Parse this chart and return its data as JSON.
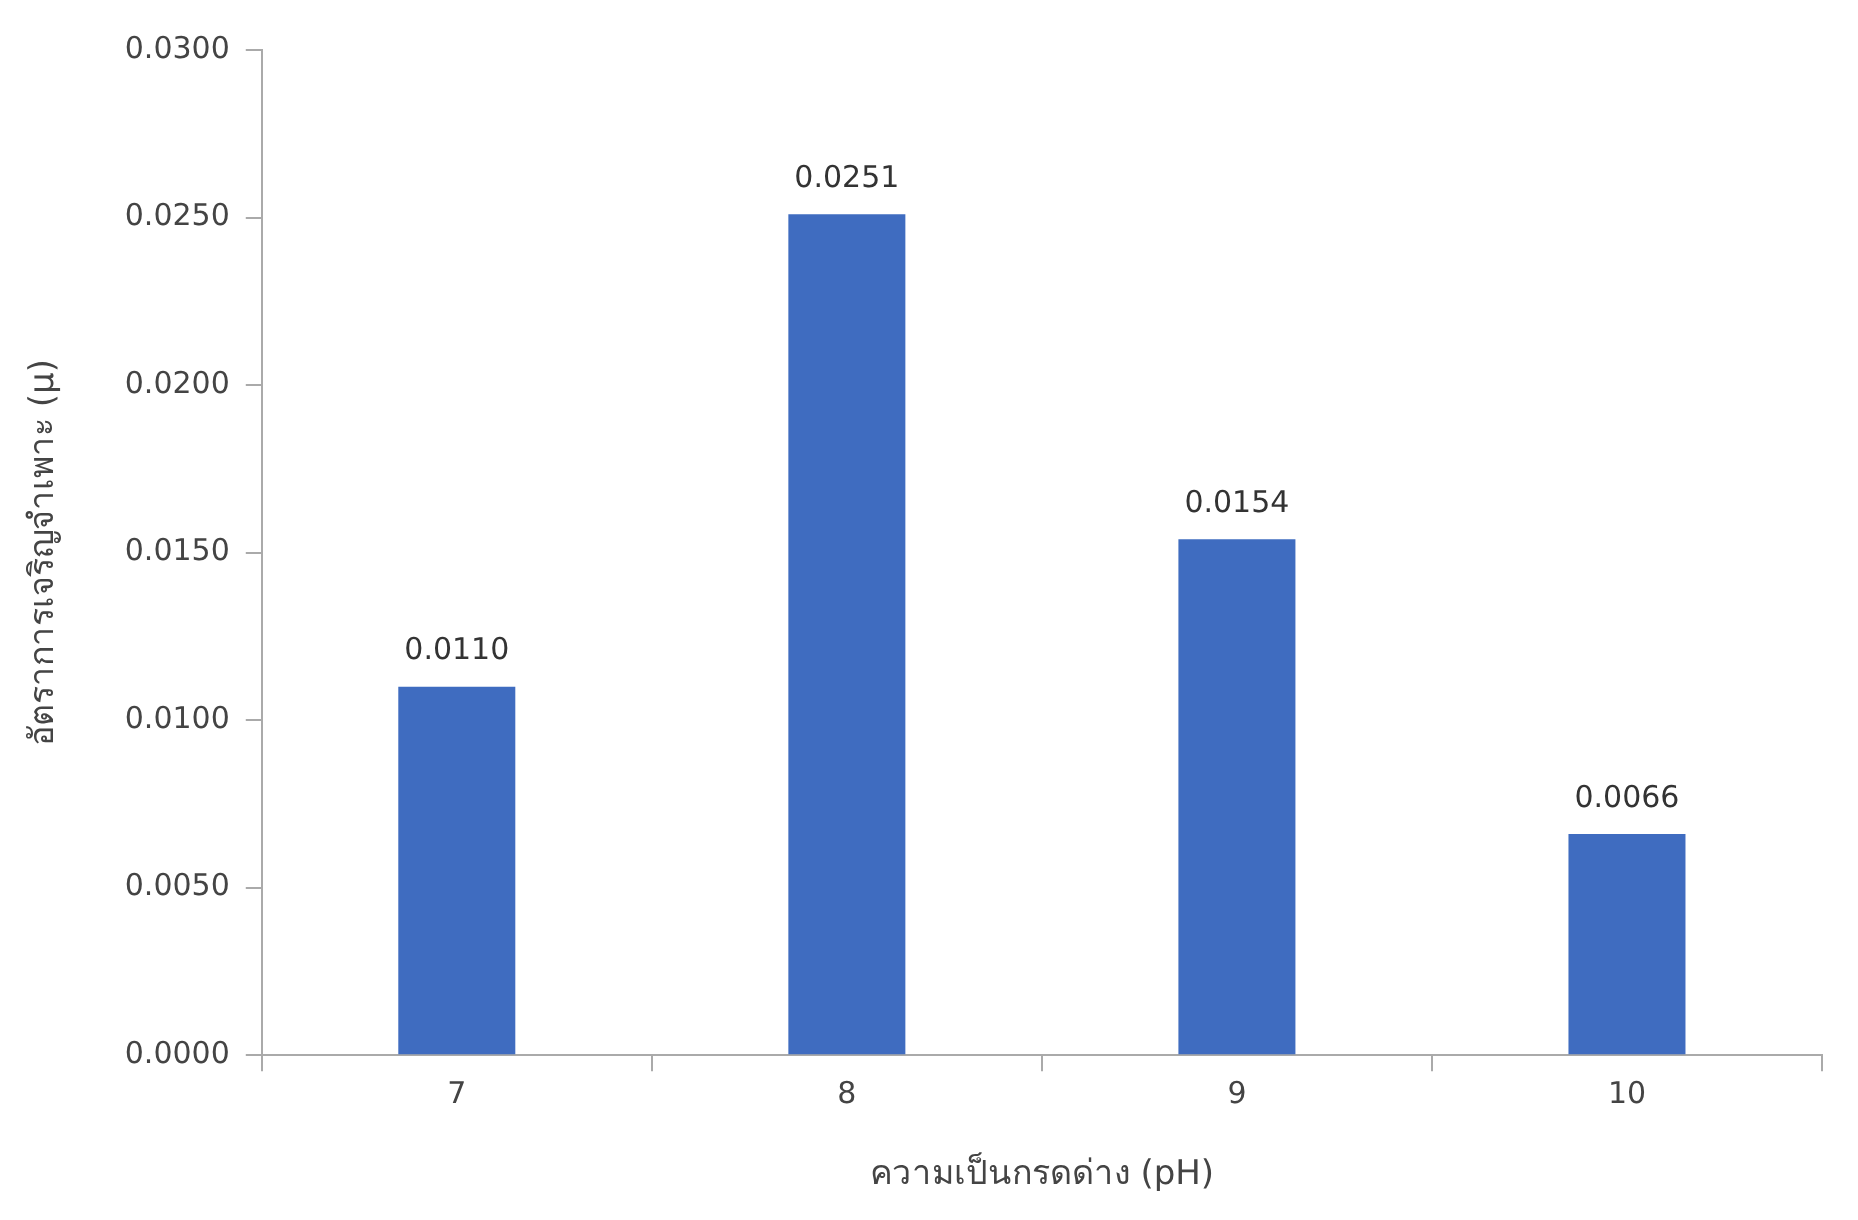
{
  "chart_data": {
    "type": "bar",
    "xlabel": "ความเป็นกรดด่าง (pH)",
    "ylabel": "อัตราการเจริญจำเพาะ (μ)",
    "categories": [
      "7",
      "8",
      "9",
      "10"
    ],
    "values": [
      0.011,
      0.0251,
      0.0154,
      0.0066
    ],
    "value_labels": [
      "0.0110",
      "0.0251",
      "0.0154",
      "0.0066"
    ],
    "color": "#3f6cc0",
    "ylim": [
      0,
      0.03
    ],
    "yticks": [
      {
        "value": 0,
        "label": "0.0000"
      },
      {
        "value": 0.005,
        "label": "0.0050"
      },
      {
        "value": 0.01,
        "label": "0.0100"
      },
      {
        "value": 0.015,
        "label": "0.0150"
      },
      {
        "value": 0.02,
        "label": "0.0200"
      },
      {
        "value": 0.025,
        "label": "0.0250"
      },
      {
        "value": 0.03,
        "label": "0.0300"
      }
    ],
    "grid": false,
    "legend": false
  }
}
